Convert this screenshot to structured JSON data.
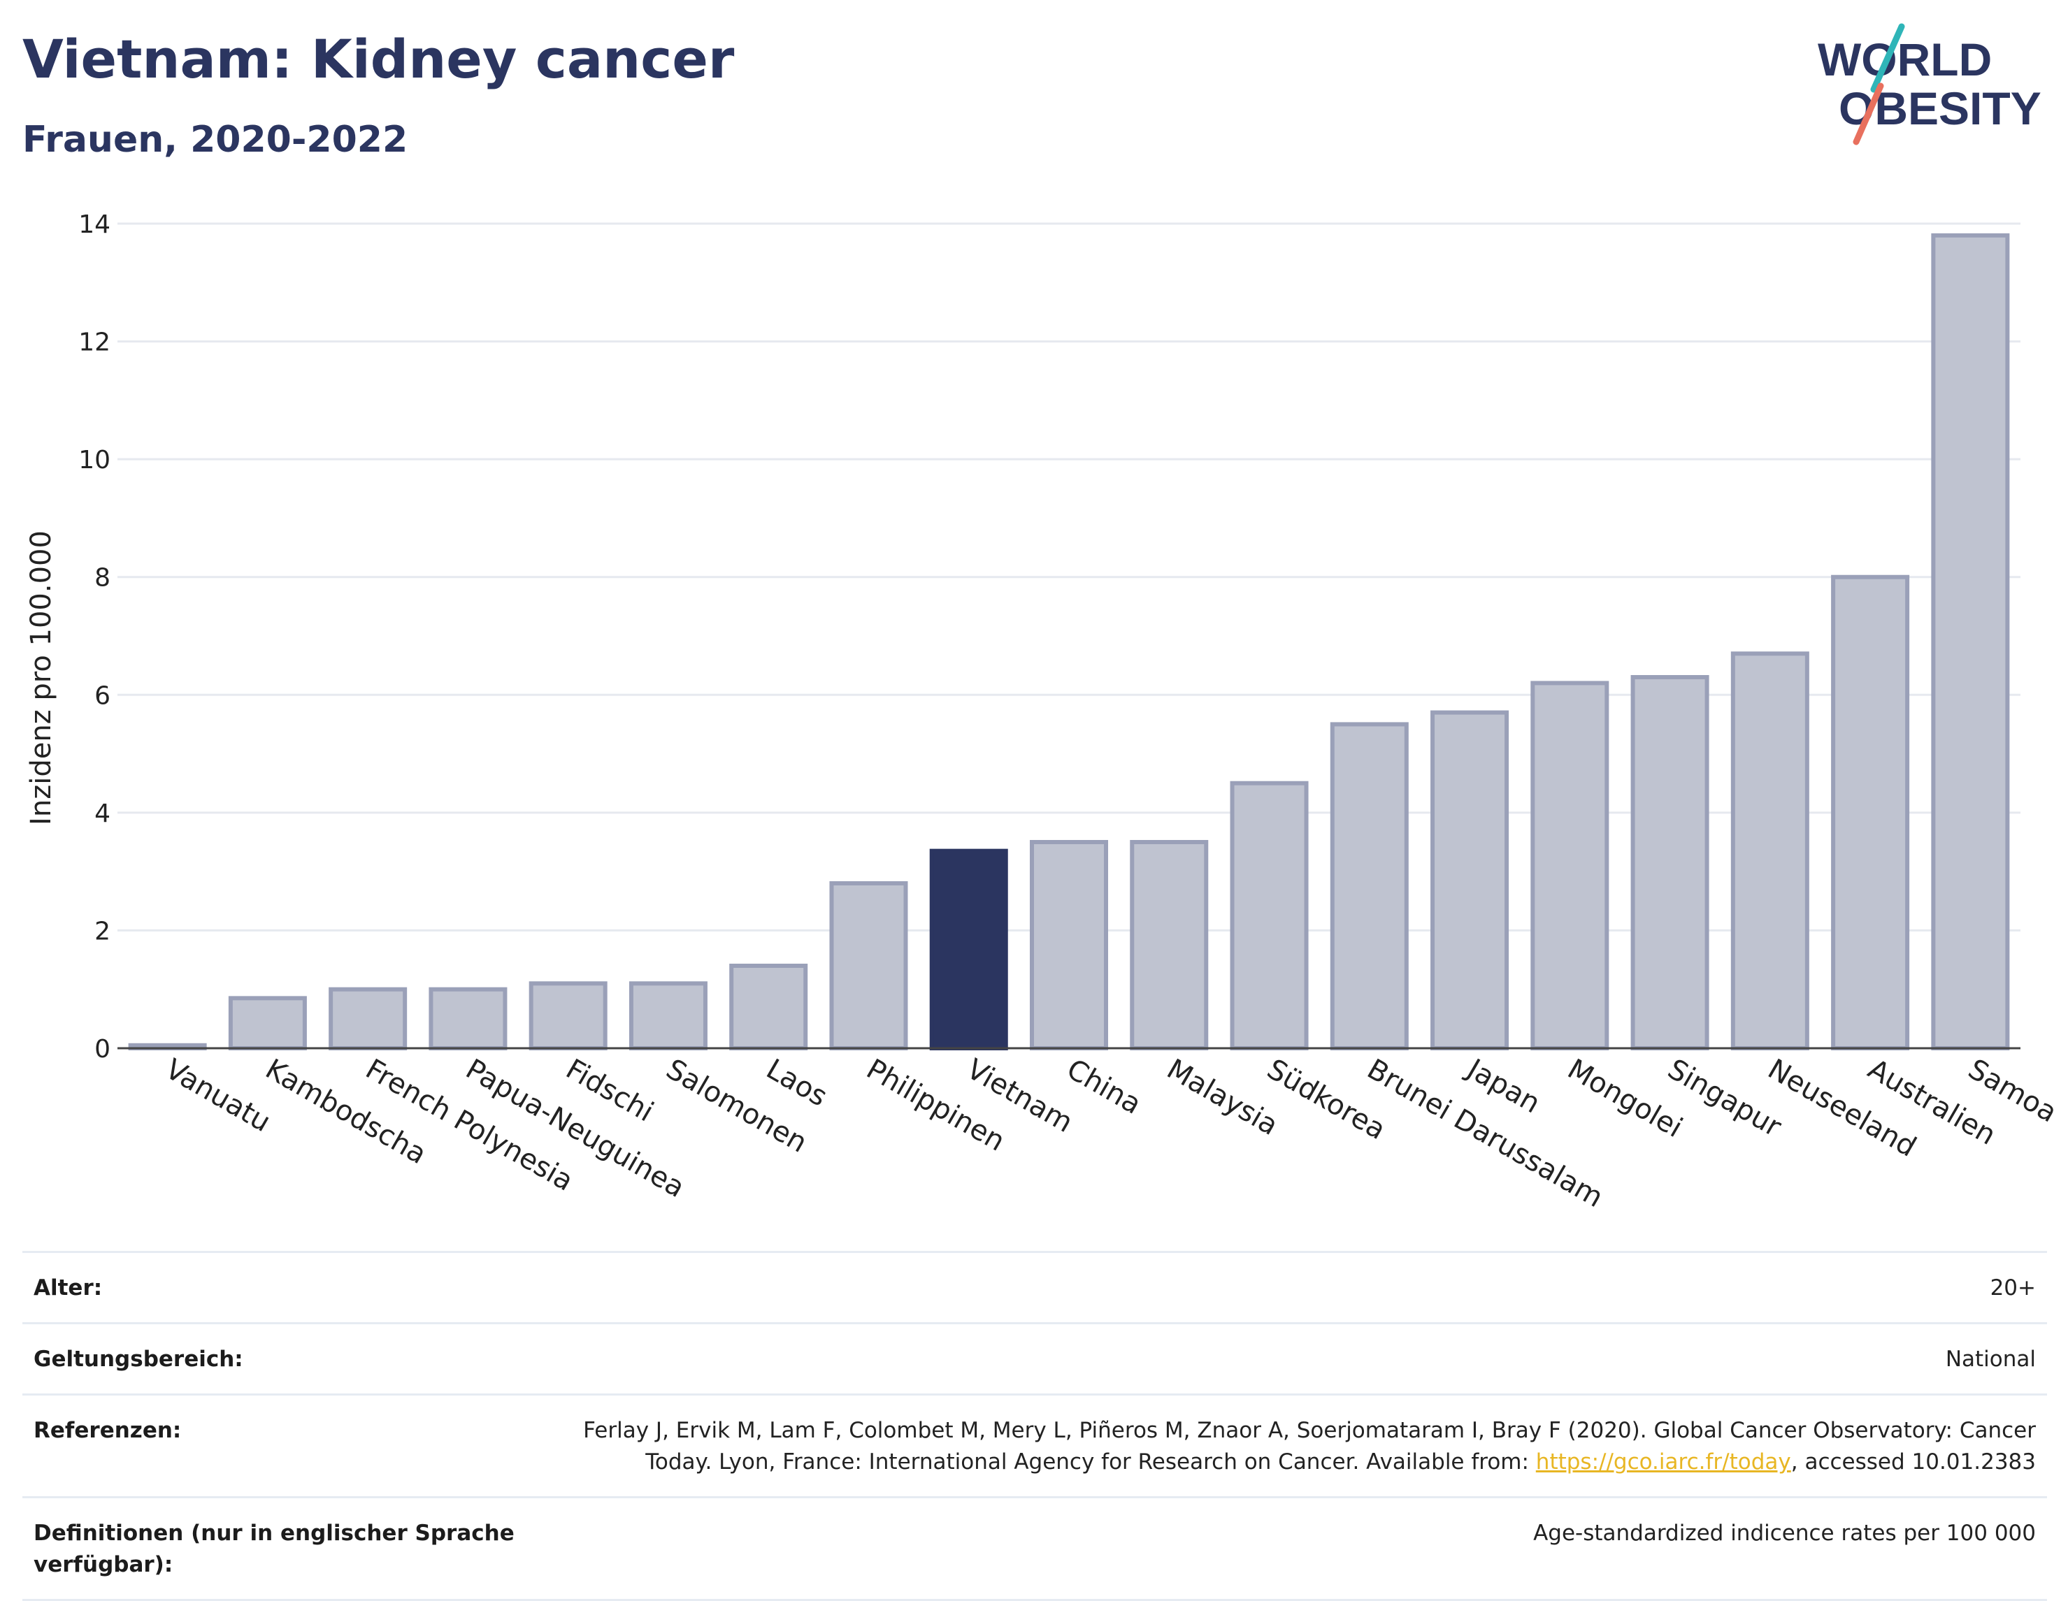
{
  "title": "Vietnam: Kidney cancer",
  "subtitle": "Frauen, 2020-2022",
  "logo": {
    "line1": "WORLD",
    "line2": "OBESITY"
  },
  "colors": {
    "highlight": "#2b3560",
    "bar": "#bfc3d0",
    "bar_edge": "#9aa0b8",
    "grid": "#e6e9ef",
    "text": "#2b3560",
    "link": "#e8b623"
  },
  "chart_data": {
    "type": "bar",
    "ylabel": "Inzidenz pro 100.000",
    "ylim": [
      0,
      14
    ],
    "yticks": [
      0,
      2,
      4,
      6,
      8,
      10,
      12,
      14
    ],
    "grid": true,
    "highlight": "Vietnam",
    "categories": [
      "Vanuatu",
      "Kambodscha",
      "French Polynesia",
      "Papua-Neuguinea",
      "Fidschi",
      "Salomonen",
      "Laos",
      "Philippinen",
      "Vietnam",
      "China",
      "Malaysia",
      "Südkorea",
      "Brunei Darussalam",
      "Japan",
      "Mongolei",
      "Singapur",
      "Neuseeland",
      "Australien",
      "Samoa"
    ],
    "values": [
      0.05,
      0.85,
      1.0,
      1.0,
      1.1,
      1.1,
      1.4,
      2.8,
      3.35,
      3.5,
      3.5,
      4.5,
      5.5,
      5.7,
      6.2,
      6.3,
      6.7,
      8.0,
      13.8
    ]
  },
  "meta": [
    {
      "key": "Alter:",
      "value": "20+"
    },
    {
      "key": "Geltungsbereich:",
      "value": "National"
    },
    {
      "key": "Referenzen:",
      "value_line1": "Ferlay J, Ervik M, Lam F, Colombet M, Mery L, Piñeros M, Znaor A, Soerjomataram I, Bray F (2020). Global Cancer Observatory: Cancer",
      "value_prefix": "Today. Lyon, France: International Agency for Research on Cancer. Available from: ",
      "link": "https://gco.iarc.fr/today",
      "value_suffix": ", accessed 10.01.2383"
    },
    {
      "key": "Definitionen (nur in englischer Sprache verfügbar):",
      "value": "Age-standardized indicence rates per 100 000"
    }
  ]
}
